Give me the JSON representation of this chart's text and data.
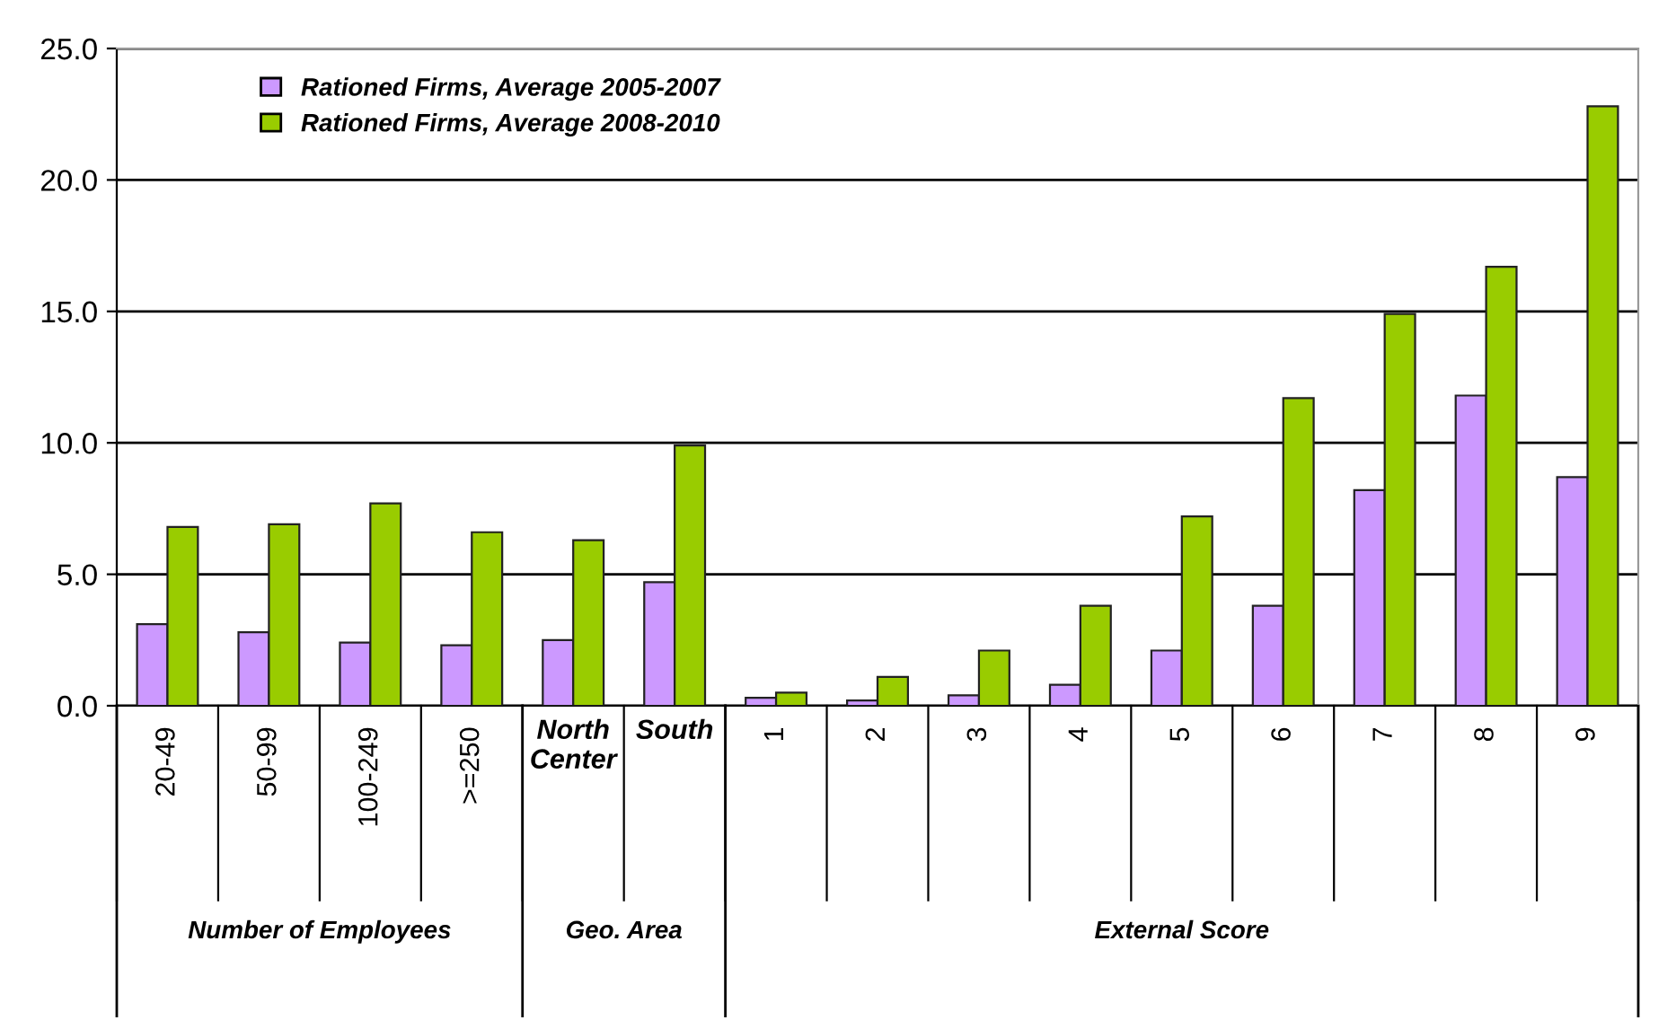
{
  "chart_data": {
    "type": "bar",
    "categories": [
      "20-49",
      "50-99",
      "100-249",
      ">=250",
      "North Center",
      "South",
      "1",
      "2",
      "3",
      "4",
      "5",
      "6",
      "7",
      "8",
      "9"
    ],
    "series": [
      {
        "name": "Rationed Firms, Average 2005-2007",
        "color": "#cc99ff",
        "values": [
          3.1,
          2.8,
          2.4,
          2.3,
          2.5,
          4.7,
          0.3,
          0.2,
          0.4,
          0.8,
          2.1,
          3.8,
          8.2,
          11.8,
          8.7
        ]
      },
      {
        "name": "Rationed Firms, Average 2008-2010",
        "color": "#99cc00",
        "values": [
          6.8,
          6.9,
          7.7,
          6.6,
          6.3,
          9.9,
          0.5,
          1.1,
          2.1,
          3.8,
          7.2,
          11.7,
          14.9,
          16.7,
          22.8
        ]
      }
    ],
    "ylim": [
      0,
      25
    ],
    "yticks": [
      {
        "value": 0,
        "label": "0.0"
      },
      {
        "value": 5,
        "label": "5.0"
      },
      {
        "value": 10,
        "label": "10.0"
      },
      {
        "value": 15,
        "label": "15.0"
      },
      {
        "value": 20,
        "label": "20.0"
      },
      {
        "value": 25,
        "label": "25.0"
      }
    ],
    "grid": "y",
    "legend": "top left",
    "annotations": [
      "Number of Employees",
      "Geo. Area",
      "External Score"
    ]
  }
}
